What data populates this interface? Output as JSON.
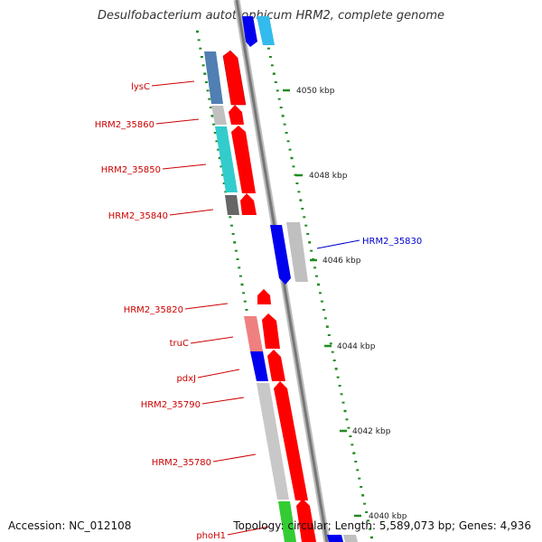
{
  "header": {
    "title": "Desulfobacterium autotrophicum HRM2, complete genome"
  },
  "footer": {
    "accession": "Accession: NC_012108",
    "summary": "Topology: circular; Length: 5,589,073 bp; Genes: 4,936"
  },
  "colors": {
    "forward_cds": "#ff0000",
    "reverse_dark": "#0000ee",
    "label_red": "#cc0000",
    "label_blue": "#0000cc",
    "tick": "#228b22",
    "backbone": "#888888"
  },
  "scale_labels": [
    "4050 kbp",
    "4048 kbp",
    "4046 kbp",
    "4044 kbp",
    "4042 kbp",
    "4040 kbp"
  ],
  "gene_labels": [
    {
      "name": "lysC",
      "color": "red"
    },
    {
      "name": "HRM2_35860",
      "color": "red"
    },
    {
      "name": "HRM2_35850",
      "color": "red"
    },
    {
      "name": "HRM2_35840",
      "color": "red"
    },
    {
      "name": "HRM2_35830",
      "color": "blue"
    },
    {
      "name": "HRM2_35820",
      "color": "red"
    },
    {
      "name": "truC",
      "color": "red"
    },
    {
      "name": "pdxJ",
      "color": "red"
    },
    {
      "name": "HRM2_35790",
      "color": "red"
    },
    {
      "name": "HRM2_35780",
      "color": "red"
    },
    {
      "name": "phoH1",
      "color": "red"
    }
  ]
}
